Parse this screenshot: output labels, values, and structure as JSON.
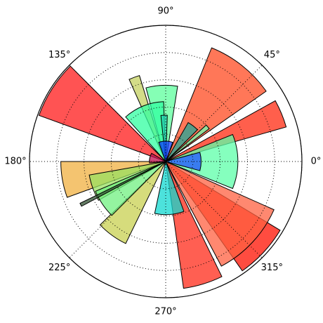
{
  "chart_data": {
    "type": "polar_bar",
    "theta": [
      147.5,
      51.5,
      22.5,
      317,
      317,
      287,
      0,
      93,
      110.5,
      112,
      92,
      52.5,
      39.5,
      0,
      90,
      190,
      200,
      234,
      214,
      207,
      274,
      167.5
    ],
    "widths": [
      25,
      33,
      13,
      24,
      38,
      18,
      44,
      24,
      7,
      40,
      8,
      15,
      5,
      30,
      40,
      20,
      20,
      20,
      22,
      2,
      32,
      35
    ],
    "values": [
      9.9,
      9.0,
      9.2,
      9.8,
      8.7,
      9.4,
      5.3,
      5.6,
      6.6,
      4.4,
      3.4,
      3.3,
      4.0,
      2.6,
      1.5,
      7.7,
      5.7,
      6.7,
      5.6,
      7.0,
      3.9,
      1.2
    ],
    "colors": [
      "#ff1a1a",
      "#ff4a20",
      "#ff2a10",
      "#ff1000",
      "#ff6040",
      "#ff2a18",
      "#5cffa8",
      "#5cff9c",
      "#c4d060",
      "#30ffa0",
      "#20d0b0",
      "#20a898",
      "#70ffb0",
      "#2050ff",
      "#1040ff",
      "#f0b040",
      "#98e060",
      "#c8d050",
      "#70f080",
      "#305030",
      "#10d8d0",
      "#c01050"
    ],
    "xticks": [
      {
        "value": 0,
        "label": "0°"
      },
      {
        "value": 45,
        "label": "45°"
      },
      {
        "value": 90,
        "label": "90°"
      },
      {
        "value": 135,
        "label": "135°"
      },
      {
        "value": 180,
        "label": "180°"
      },
      {
        "value": 225,
        "label": "225°"
      },
      {
        "value": 270,
        "label": "270°"
      },
      {
        "value": 315,
        "label": "315°"
      }
    ],
    "ylim": [
      0,
      10
    ],
    "yticks": [
      2,
      4,
      6,
      8,
      10
    ],
    "grid": true
  }
}
